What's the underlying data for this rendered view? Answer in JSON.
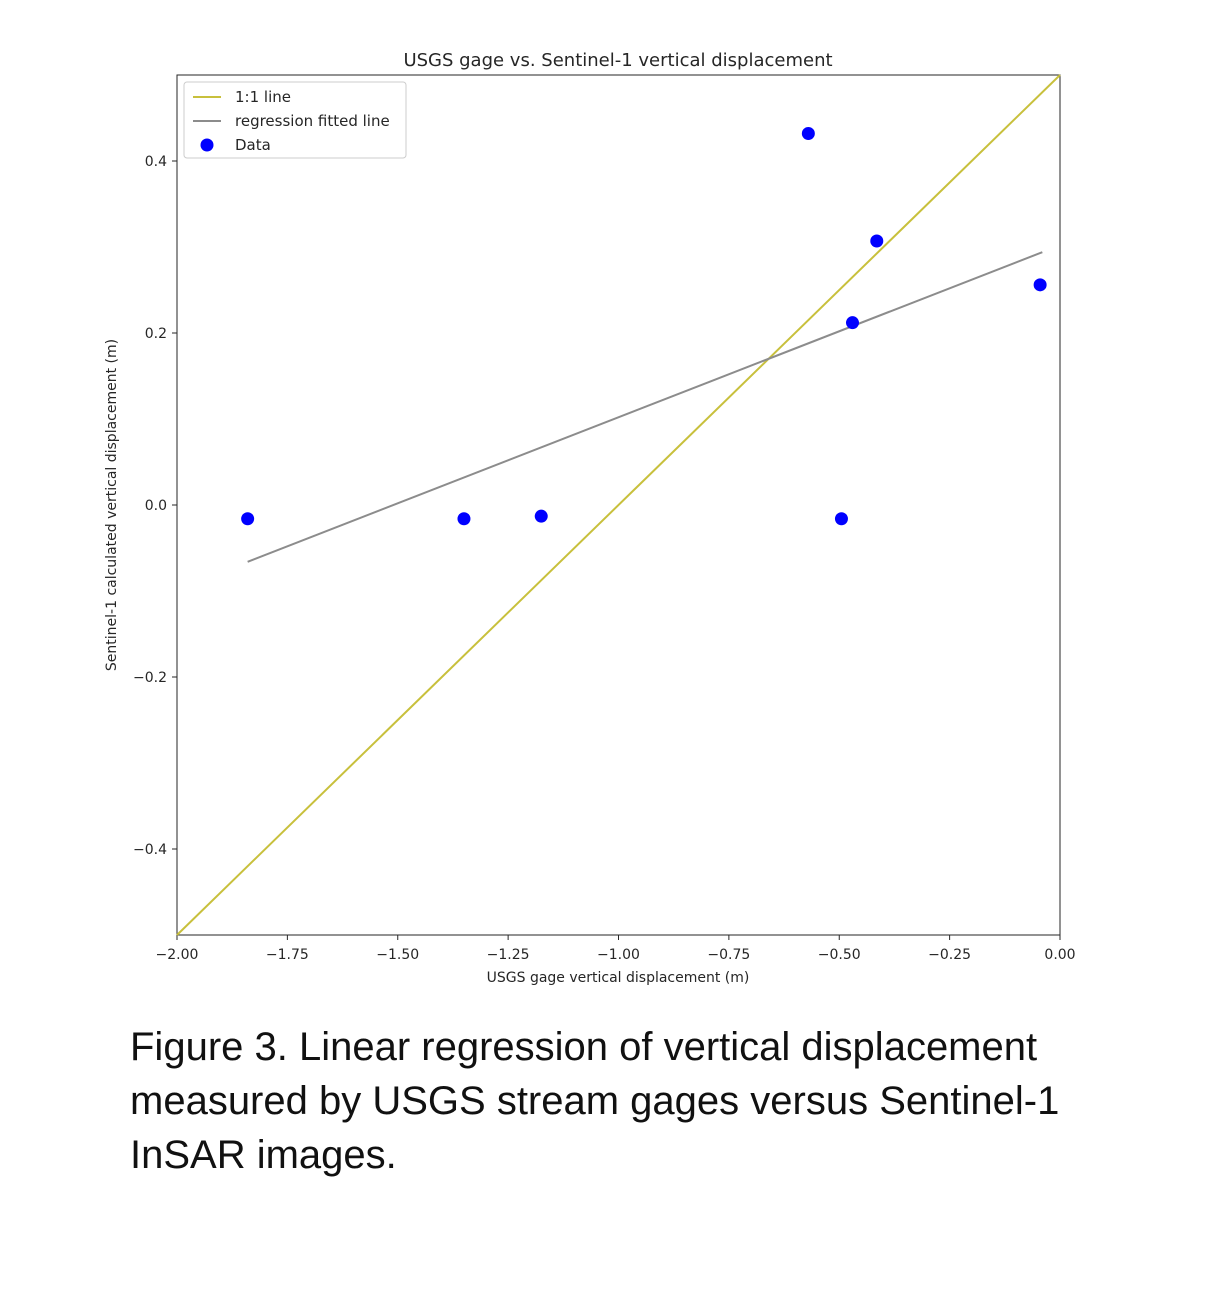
{
  "chart_data": {
    "type": "scatter",
    "title": "USGS gage vs. Sentinel-1 vertical displacement",
    "xlabel": "USGS gage vertical displacement (m)",
    "ylabel": "Sentinel-1 calculated vertical displacement (m)",
    "xlim": [
      -2.0,
      0.0
    ],
    "ylim": [
      -0.5,
      0.5
    ],
    "x_ticks": [
      -2.0,
      -1.75,
      -1.5,
      -1.25,
      -1.0,
      -0.75,
      -0.5,
      -0.25,
      0.0
    ],
    "x_tick_labels": [
      "−2.00",
      "−1.75",
      "−1.50",
      "−1.25",
      "−1.00",
      "−0.75",
      "−0.50",
      "−0.25",
      "0.00"
    ],
    "y_ticks": [
      -0.4,
      -0.2,
      0.0,
      0.2,
      0.4
    ],
    "y_tick_labels": [
      "−0.4",
      "−0.2",
      "0.0",
      "0.2",
      "0.4"
    ],
    "grid": false,
    "legend_position": "top-left",
    "series": [
      {
        "name": "1:1 line",
        "kind": "line",
        "color": "#c8c03c",
        "x": [
          -2.0,
          0.0
        ],
        "y": [
          -0.5,
          0.5
        ]
      },
      {
        "name": "regression fitted line",
        "kind": "line",
        "color": "#8c8c8c",
        "x": [
          -1.84,
          -0.04
        ],
        "y": [
          -0.066,
          0.294
        ]
      },
      {
        "name": "Data",
        "kind": "scatter",
        "color": "#0000ff",
        "x": [
          -1.84,
          -1.35,
          -1.175,
          -0.57,
          -0.495,
          -0.47,
          -0.415,
          -0.045
        ],
        "y": [
          -0.016,
          -0.016,
          -0.013,
          0.432,
          -0.016,
          0.212,
          0.307,
          0.256
        ]
      }
    ]
  },
  "caption": "Figure 3. Linear regression of vertical displacement measured by USGS stream gages versus Sentinel-1 InSAR images."
}
